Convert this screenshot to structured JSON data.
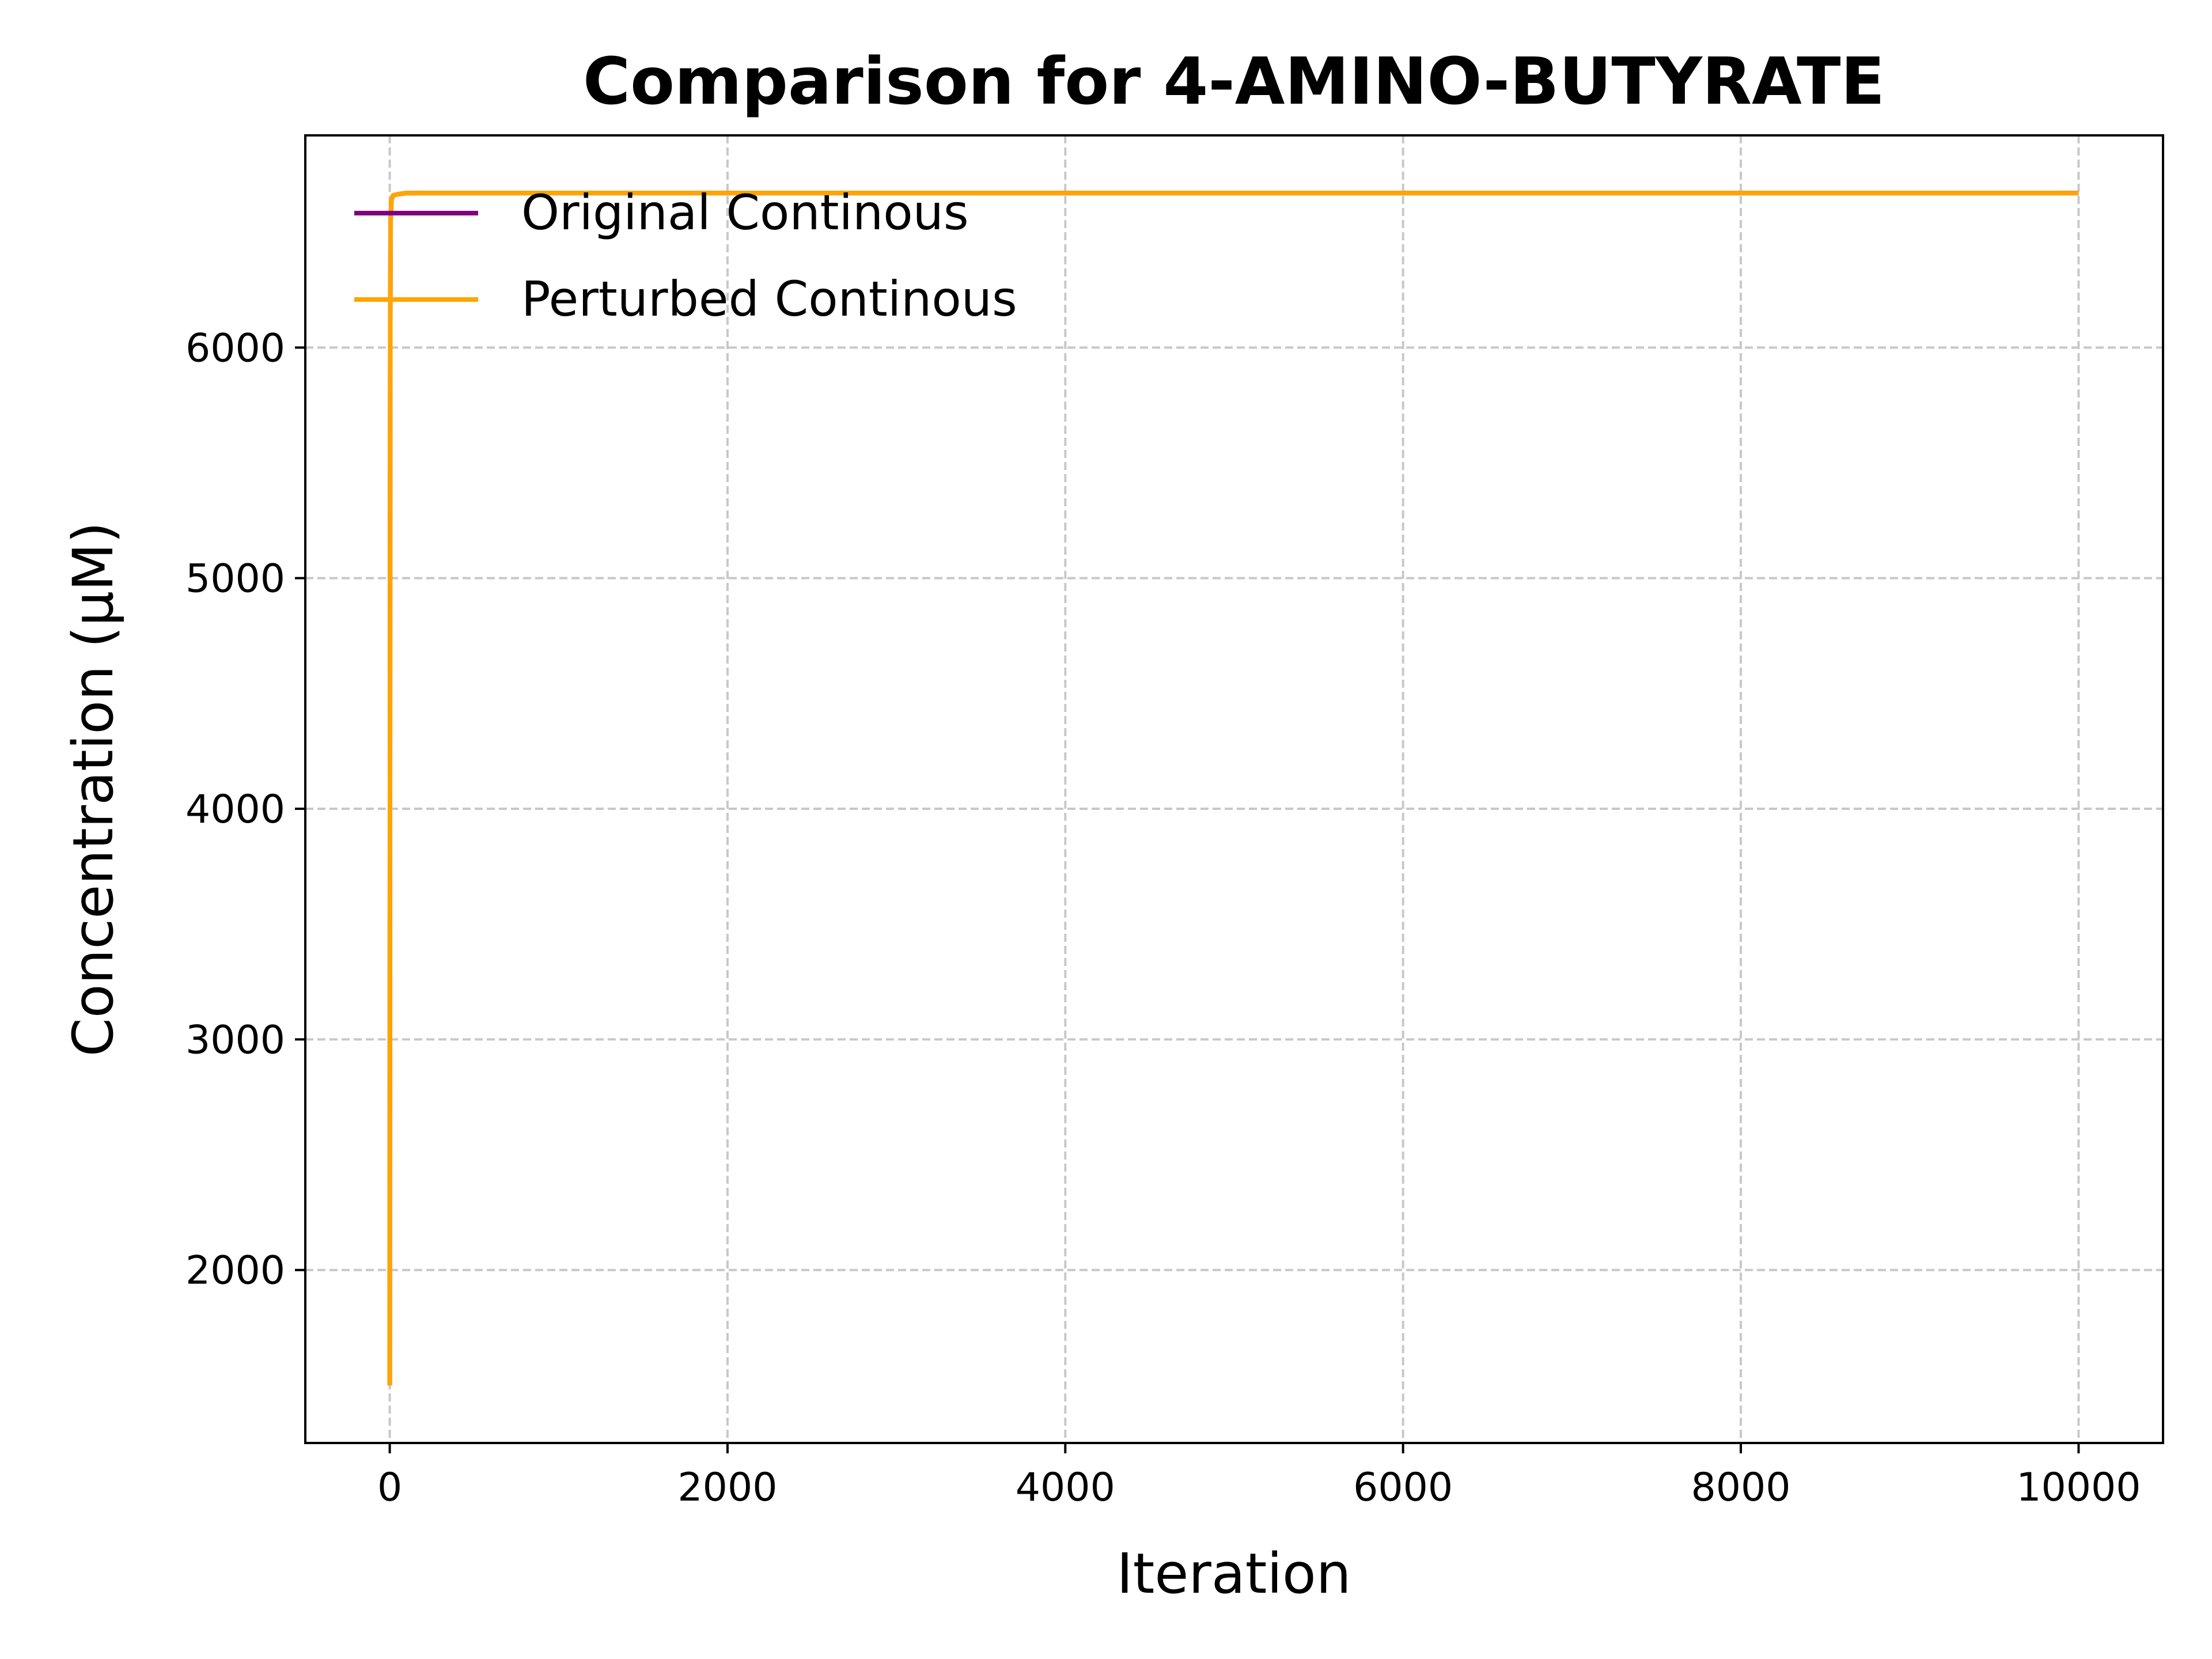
{
  "chart_data": {
    "type": "line",
    "title": "Comparison for 4-AMINO-BUTYRATE",
    "xlabel": "Iteration",
    "ylabel": "Concentration (μM)",
    "xlim": [
      -500,
      10500
    ],
    "ylim": [
      1250,
      6920
    ],
    "xticks": [
      0,
      2000,
      4000,
      6000,
      8000,
      10000
    ],
    "yticks": [
      2000,
      3000,
      4000,
      5000,
      6000
    ],
    "grid": true,
    "legend_position": "top-left",
    "series": [
      {
        "name": "Original Continous",
        "color": "#800080",
        "x": [
          0,
          1,
          2,
          3,
          5,
          10,
          20,
          50,
          100,
          1000,
          5000,
          10000
        ],
        "y": [
          1500,
          3500,
          5200,
          6100,
          6550,
          6640,
          6660,
          6665,
          6670,
          6670,
          6670,
          6670
        ]
      },
      {
        "name": "Perturbed Continous",
        "color": "#FFA500",
        "x": [
          0,
          1,
          2,
          3,
          5,
          10,
          20,
          50,
          100,
          1000,
          5000,
          10000
        ],
        "y": [
          1500,
          3500,
          5200,
          6100,
          6550,
          6640,
          6660,
          6665,
          6670,
          6670,
          6670,
          6670
        ]
      }
    ]
  }
}
